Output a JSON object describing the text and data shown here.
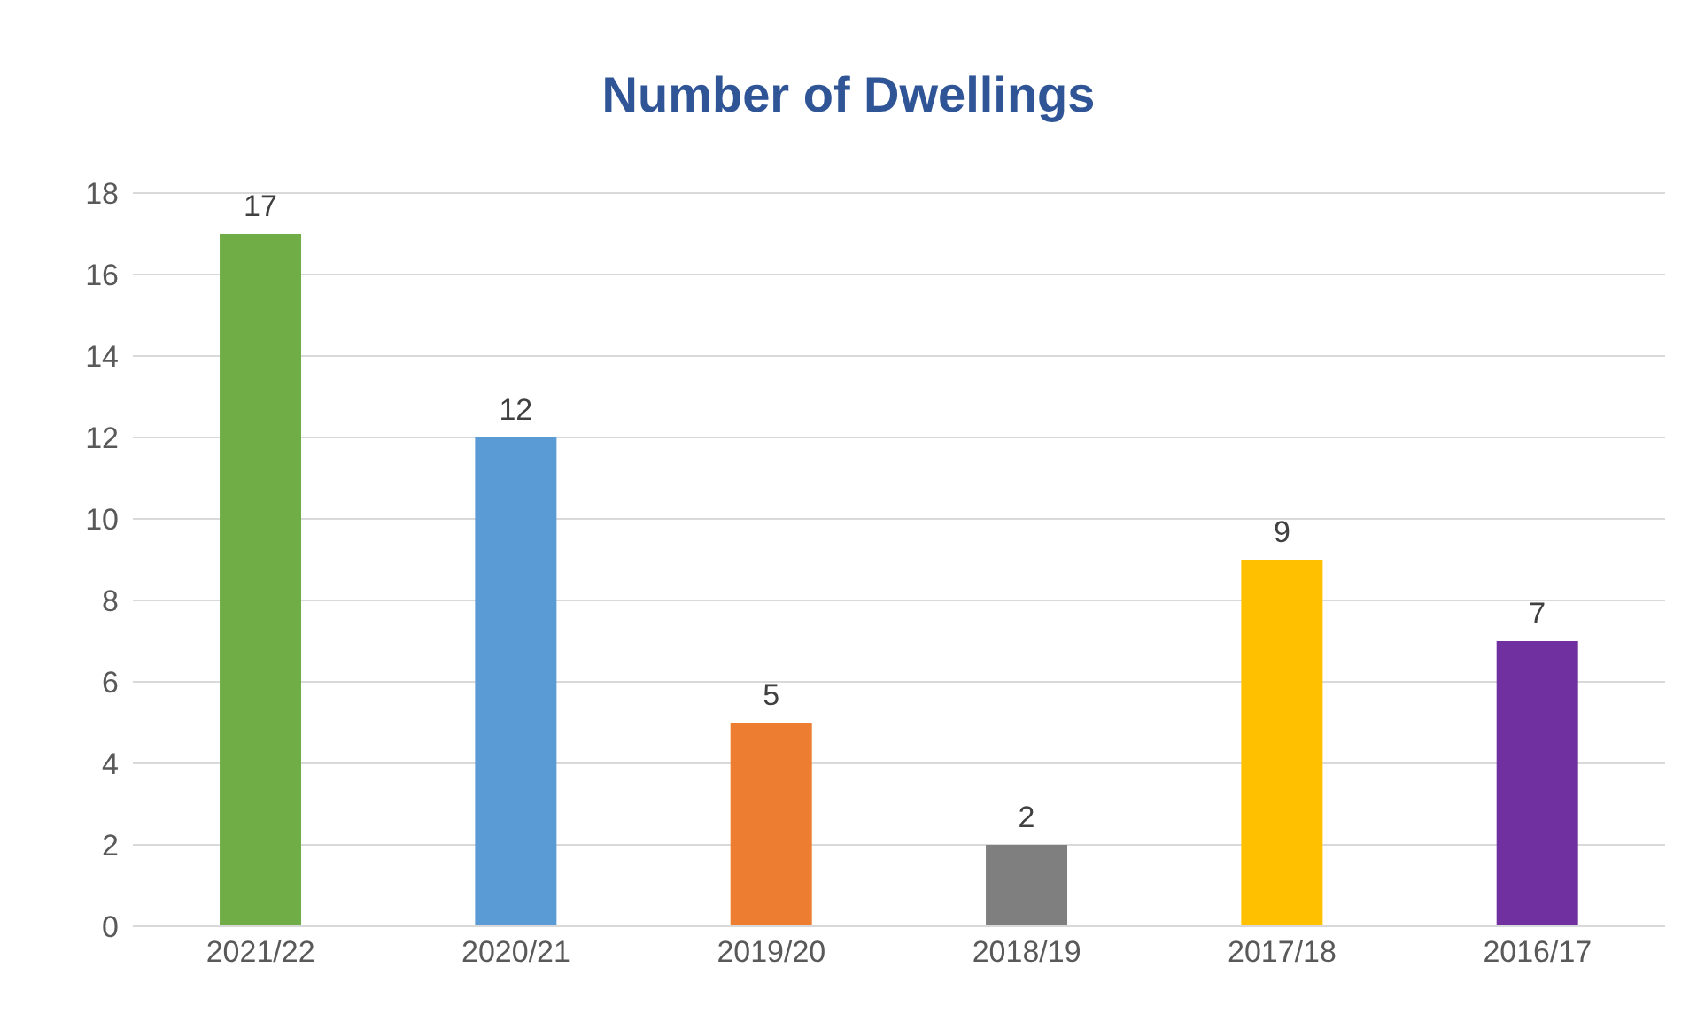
{
  "chart_data": {
    "type": "bar",
    "title": "Number of Dwellings",
    "categories": [
      "2021/22",
      "2020/21",
      "2019/20",
      "2018/19",
      "2017/18",
      "2016/17"
    ],
    "values": [
      17,
      12,
      5,
      2,
      9,
      7
    ],
    "colors": [
      "#70ad47",
      "#5b9bd5",
      "#ed7d31",
      "#7f7f7f",
      "#ffc000",
      "#7030a0"
    ],
    "ylim": [
      0,
      18
    ],
    "yticks": [
      0,
      2,
      4,
      6,
      8,
      10,
      12,
      14,
      16,
      18
    ],
    "grid": "y",
    "data_labels": true,
    "legend": false
  }
}
